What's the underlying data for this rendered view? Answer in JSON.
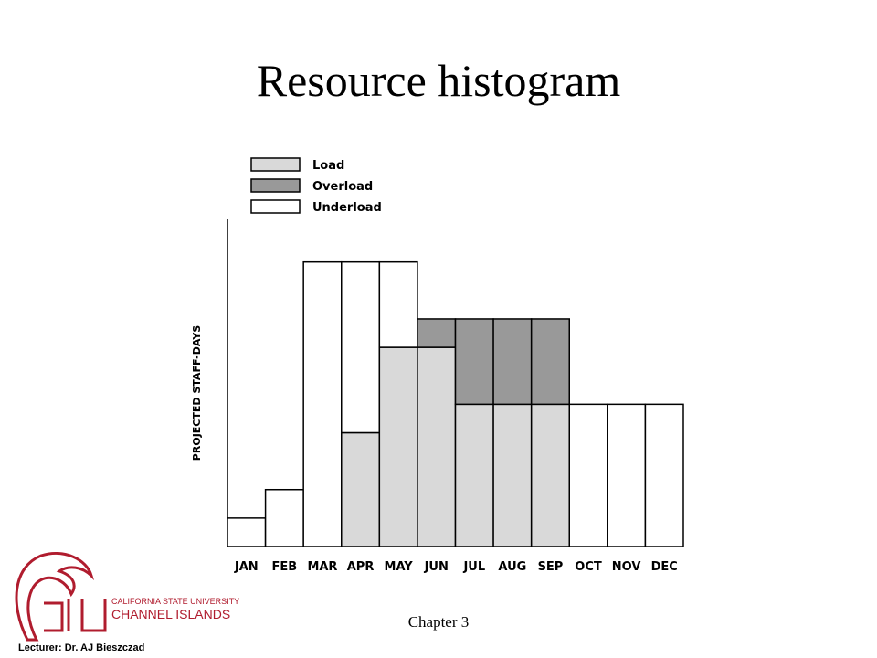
{
  "chart_data": {
    "type": "stacked-bar",
    "title": "Resource histogram",
    "y_label": "PROJECTED STAFF-DAYS",
    "categories": [
      "JAN",
      "FEB",
      "MAR",
      "APR",
      "MAY",
      "JUN",
      "JUL",
      "AUG",
      "SEP",
      "OCT",
      "NOV",
      "DEC"
    ],
    "series": [
      {
        "name": "Load",
        "color": "#d9d9d9",
        "values": [
          0,
          0,
          0,
          4,
          7,
          7,
          5,
          5,
          5,
          0,
          0,
          0
        ]
      },
      {
        "name": "Overload",
        "color": "#999999",
        "values": [
          0,
          0,
          0,
          0,
          0,
          1,
          3,
          3,
          3,
          0,
          0,
          0
        ]
      },
      {
        "name": "Underload",
        "color": "#ffffff",
        "values": [
          1,
          2,
          10,
          6,
          3,
          0,
          0,
          0,
          0,
          5,
          5,
          5
        ]
      }
    ],
    "ylim": [
      0,
      11.5
    ]
  },
  "footer": {
    "chapter": "Chapter 3",
    "lecturer": "Lecturer: Dr. AJ Bieszczad",
    "logo_line1": "CALIFORNIA STATE UNIVERSITY",
    "logo_line2": "CHANNEL ISLANDS"
  }
}
